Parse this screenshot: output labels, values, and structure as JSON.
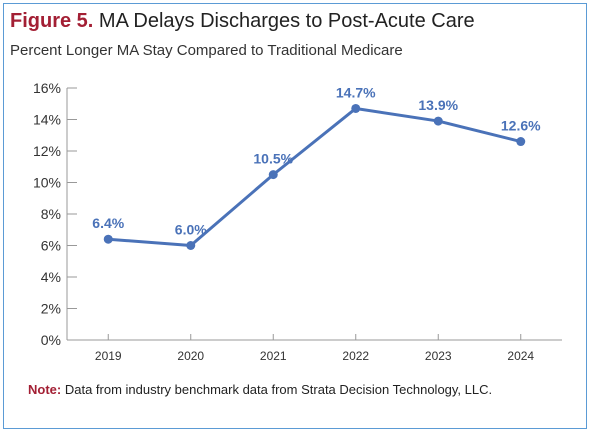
{
  "figure": {
    "label": "Figure 5.",
    "title": "MA Delays Discharges to Post-Acute Care",
    "subtitle": "Percent Longer MA Stay Compared to Traditional Medicare"
  },
  "note": {
    "label": "Note:",
    "text": "Data from industry benchmark data from Strata Decision Technology, LLC."
  },
  "colors": {
    "series": "#4a72b8",
    "label": "#4a72b8",
    "accent": "#a31f34",
    "border": "#5b9bd5"
  },
  "chart_data": {
    "type": "line",
    "title": "MA Delays Discharges to Post-Acute Care",
    "subtitle": "Percent Longer MA Stay Compared to Traditional Medicare",
    "xlabel": "",
    "ylabel": "",
    "categories": [
      "2019",
      "2020",
      "2021",
      "2022",
      "2023",
      "2024"
    ],
    "series": [
      {
        "values": [
          6.4,
          6.0,
          10.5,
          14.7,
          13.9,
          12.6
        ],
        "labels": [
          "6.4%",
          "6.0%",
          "10.5%",
          "14.7%",
          "13.9%",
          "12.6%"
        ]
      }
    ],
    "ylim": [
      0,
      16
    ],
    "yticks": [
      0,
      2,
      4,
      6,
      8,
      10,
      12,
      14,
      16
    ],
    "ytick_labels": [
      "0%",
      "2%",
      "4%",
      "6%",
      "8%",
      "10%",
      "12%",
      "14%",
      "16%"
    ],
    "grid": false,
    "legend": "none"
  }
}
